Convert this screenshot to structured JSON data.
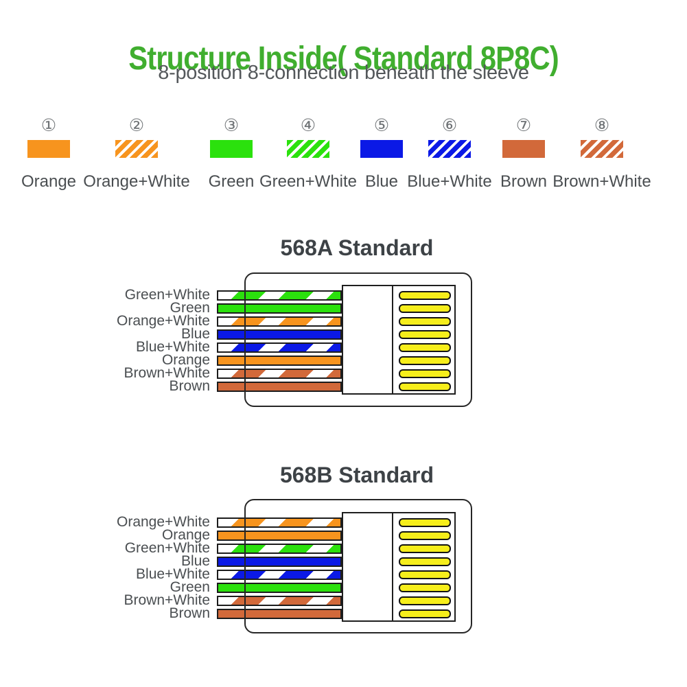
{
  "page": {
    "title": "Structure Inside( Standard 8P8C)",
    "subtitle": "8-position 8-connection beneath the sleeve"
  },
  "colors": {
    "orange": "#F7941E",
    "green": "#2BE10D",
    "blue": "#0B19E6",
    "brown": "#D2693A",
    "pin_yellow": "#F6EE1B",
    "title_green": "#40AE2F",
    "heading_gray": "#3D4246",
    "label_gray": "#4A4E51"
  },
  "legend": {
    "items": [
      {
        "number": "①",
        "label": "Orange",
        "color_key": "orange",
        "striped": false
      },
      {
        "number": "②",
        "label": "Orange+White",
        "color_key": "orange",
        "striped": true
      },
      {
        "number": "③",
        "label": "Green",
        "color_key": "green",
        "striped": false
      },
      {
        "number": "④",
        "label": "Green+White",
        "color_key": "green",
        "striped": true
      },
      {
        "number": "⑤",
        "label": "Blue",
        "color_key": "blue",
        "striped": false
      },
      {
        "number": "⑥",
        "label": "Blue+White",
        "color_key": "blue",
        "striped": true
      },
      {
        "number": "⑦",
        "label": "Brown",
        "color_key": "brown",
        "striped": false
      },
      {
        "number": "⑧",
        "label": "Brown+White",
        "color_key": "brown",
        "striped": true
      }
    ]
  },
  "diagrams": [
    {
      "title": "568A Standard",
      "wires": [
        {
          "label": "Green+White",
          "color_key": "green",
          "striped": true
        },
        {
          "label": "Green",
          "color_key": "green",
          "striped": false
        },
        {
          "label": "Orange+White",
          "color_key": "orange",
          "striped": true
        },
        {
          "label": "Blue",
          "color_key": "blue",
          "striped": false
        },
        {
          "label": "Blue+White",
          "color_key": "blue",
          "striped": true
        },
        {
          "label": "Orange",
          "color_key": "orange",
          "striped": false
        },
        {
          "label": "Brown+White",
          "color_key": "brown",
          "striped": true
        },
        {
          "label": "Brown",
          "color_key": "brown",
          "striped": false
        }
      ]
    },
    {
      "title": "568B Standard",
      "wires": [
        {
          "label": "Orange+White",
          "color_key": "orange",
          "striped": true
        },
        {
          "label": "Orange",
          "color_key": "orange",
          "striped": false
        },
        {
          "label": "Green+White",
          "color_key": "green",
          "striped": true
        },
        {
          "label": "Blue",
          "color_key": "blue",
          "striped": false
        },
        {
          "label": "Blue+White",
          "color_key": "blue",
          "striped": true
        },
        {
          "label": "Green",
          "color_key": "green",
          "striped": false
        },
        {
          "label": "Brown+White",
          "color_key": "brown",
          "striped": true
        },
        {
          "label": "Brown",
          "color_key": "brown",
          "striped": false
        }
      ]
    }
  ]
}
